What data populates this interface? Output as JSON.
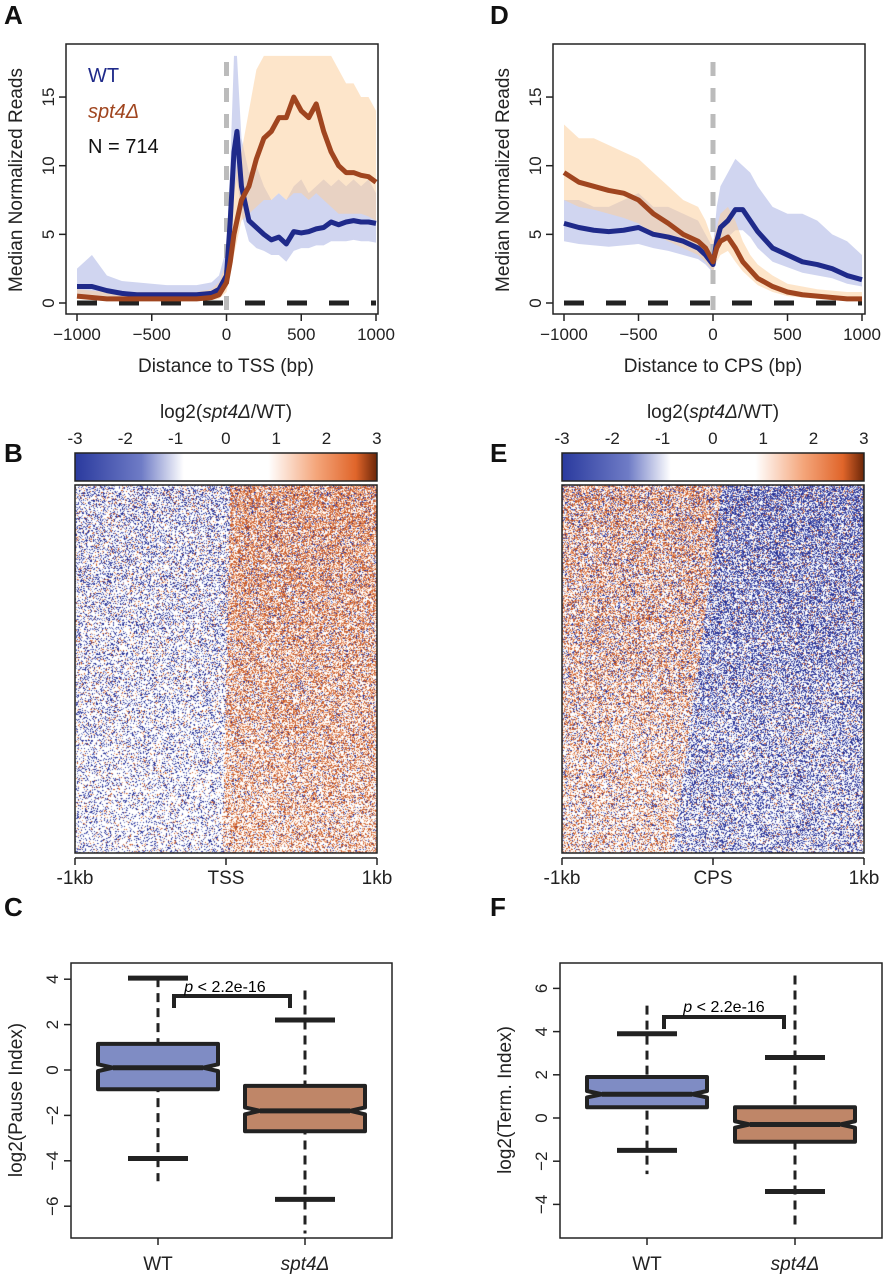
{
  "colors": {
    "wt_line": "#1f2a8a",
    "wt_band": "#aab3e3",
    "spt4_line": "#a0451f",
    "spt4_band": "#fbcf9f",
    "wt_box": "#7f8cc4",
    "spt4_box": "#bf8668",
    "heat_low": "#2a3a9e",
    "heat_mid": "#ffffff",
    "heat_high": "#e0652a",
    "heat_max": "#6b2608"
  },
  "chart_data": [
    {
      "panel": "A",
      "type": "line",
      "xlabel": "Distance to TSS (bp)",
      "ylabel": "Median Normalized Reads",
      "xlim": [
        -1000,
        1000
      ],
      "ylim": [
        0,
        18
      ],
      "xticks": [
        "−1000",
        "−500",
        "0",
        "500",
        "1000"
      ],
      "yticks": [
        "0",
        "5",
        "10",
        "15"
      ],
      "annotation": "N = 714",
      "x": [
        -1000,
        -900,
        -800,
        -700,
        -600,
        -500,
        -400,
        -300,
        -200,
        -100,
        -50,
        0,
        25,
        50,
        70,
        100,
        150,
        200,
        250,
        300,
        350,
        400,
        450,
        500,
        550,
        600,
        650,
        700,
        750,
        800,
        850,
        900,
        950,
        1000
      ],
      "series": [
        {
          "name": "WT",
          "values": [
            1.2,
            1.2,
            0.9,
            0.7,
            0.6,
            0.6,
            0.6,
            0.6,
            0.6,
            0.7,
            1.0,
            2.0,
            6,
            11,
            12.5,
            8.5,
            6,
            5.5,
            5,
            4.6,
            4.8,
            4.3,
            5.2,
            5.1,
            5.2,
            5.4,
            5.5,
            5.9,
            5.7,
            5.9,
            6,
            5.9,
            5.9,
            5.8
          ],
          "band_lower": [
            0.6,
            0.6,
            0.5,
            0.4,
            0.4,
            0.4,
            0.4,
            0.4,
            0.4,
            0.4,
            0.6,
            1.2,
            4,
            8,
            9,
            6.5,
            4.5,
            4,
            3.8,
            3.5,
            3.5,
            3,
            3.8,
            4,
            4,
            4.2,
            4.2,
            4.5,
            4.5,
            4.5,
            4.6,
            4.5,
            4.5,
            4.4
          ],
          "band_upper": [
            2.5,
            3.5,
            2,
            1.6,
            1.5,
            1.4,
            1.3,
            1.3,
            1.3,
            1.5,
            2,
            4,
            10,
            18,
            18,
            12,
            9.5,
            10,
            8.5,
            7.5,
            8,
            7.5,
            8.5,
            9,
            8,
            8.5,
            9,
            8.5,
            9,
            8.5,
            9,
            8.5,
            9,
            8
          ]
        },
        {
          "name": "spt4Δ",
          "values": [
            0.5,
            0.4,
            0.3,
            0.3,
            0.3,
            0.3,
            0.3,
            0.3,
            0.3,
            0.4,
            0.6,
            1.5,
            3,
            5,
            6,
            7.5,
            8.5,
            10.5,
            12,
            12.5,
            13.5,
            13.5,
            15,
            14,
            13.5,
            14.5,
            12.5,
            11,
            10,
            9.5,
            9.5,
            9.3,
            9.2,
            8.8
          ],
          "band_lower": [
            0.3,
            0.2,
            0.2,
            0.2,
            0.2,
            0.2,
            0.2,
            0.2,
            0.2,
            0.2,
            0.3,
            0.8,
            2,
            3.5,
            4.5,
            6,
            6.5,
            7,
            7.5,
            7.5,
            8,
            7.5,
            8,
            8,
            7.5,
            8,
            7.5,
            7,
            6.5,
            6.5,
            6.5,
            6.5,
            6.3,
            6
          ],
          "band_upper": [
            1,
            0.9,
            0.8,
            0.8,
            0.8,
            0.8,
            0.8,
            0.8,
            0.8,
            1,
            1.5,
            3,
            5,
            8,
            10,
            11,
            14,
            17,
            18,
            18,
            18,
            18,
            18,
            18,
            18,
            18,
            18,
            18,
            17,
            16,
            16,
            15,
            15,
            14
          ]
        }
      ]
    },
    {
      "panel": "D",
      "type": "line",
      "xlabel": "Distance to CPS (bp)",
      "ylabel": "Median Normalized Reads",
      "xlim": [
        -1000,
        1000
      ],
      "ylim": [
        0,
        18
      ],
      "xticks": [
        "−1000",
        "−500",
        "0",
        "500",
        "1000"
      ],
      "yticks": [
        "0",
        "5",
        "10",
        "15"
      ],
      "x": [
        -1000,
        -900,
        -800,
        -700,
        -600,
        -500,
        -400,
        -300,
        -200,
        -100,
        -50,
        0,
        25,
        50,
        100,
        150,
        200,
        250,
        300,
        400,
        500,
        600,
        700,
        800,
        900,
        1000
      ],
      "series": [
        {
          "name": "WT",
          "values": [
            5.8,
            5.5,
            5.3,
            5.2,
            5.3,
            5.5,
            5,
            4.8,
            4.5,
            4,
            3.5,
            2.8,
            4.5,
            5.5,
            6,
            6.8,
            6.8,
            6,
            5.2,
            4,
            3.5,
            3,
            2.8,
            2.5,
            2,
            1.7
          ],
          "band_lower": [
            4.5,
            4.3,
            4.2,
            4.1,
            4.2,
            4.3,
            4,
            3.8,
            3.5,
            3.2,
            2.8,
            2.2,
            3.5,
            4.3,
            4.8,
            5.3,
            5.3,
            4.8,
            4,
            3,
            2.6,
            2.2,
            2,
            1.8,
            1.4,
            1.2
          ],
          "band_upper": [
            7.5,
            7.5,
            7,
            7,
            7.5,
            8,
            7,
            7,
            6.5,
            6,
            5,
            4,
            7,
            8.5,
            9.5,
            10.5,
            10,
            9.5,
            8.5,
            7,
            6.5,
            6.5,
            6,
            5,
            4.5,
            3.5
          ]
        },
        {
          "name": "spt4Δ",
          "values": [
            9.5,
            8.8,
            8.5,
            8.2,
            8,
            7.5,
            6.5,
            5.8,
            5,
            4.5,
            4,
            3,
            4,
            4.5,
            4.8,
            4,
            3,
            2.4,
            1.8,
            1.2,
            0.8,
            0.6,
            0.5,
            0.4,
            0.3,
            0.3
          ],
          "band_lower": [
            7.5,
            7,
            6.8,
            6.5,
            6.2,
            5.8,
            5,
            4.5,
            4,
            3.5,
            3,
            2.3,
            3,
            3.5,
            3.8,
            3,
            2.3,
            1.8,
            1.3,
            0.8,
            0.5,
            0.4,
            0.3,
            0.2,
            0.2,
            0.2
          ],
          "band_upper": [
            13,
            12,
            12,
            11.5,
            11,
            10.5,
            9.5,
            8.5,
            7.5,
            7,
            6,
            4.5,
            5.5,
            6.5,
            7,
            6,
            4.5,
            3.5,
            2.8,
            2,
            1.4,
            1.2,
            1,
            0.9,
            0.8,
            0.8
          ]
        }
      ]
    },
    {
      "panel": "B",
      "type": "heatmap",
      "colorbar_title": {
        "prefix": "log2(",
        "italic": "spt4Δ",
        "suffix": "/WT)"
      },
      "colorbar_ticks": [
        "-3",
        "-2",
        "-1",
        "0",
        "1",
        "2",
        "3"
      ],
      "colorbar_range": [
        -3,
        3
      ],
      "xticks": [
        "-1kb",
        "TSS",
        "1kb"
      ],
      "pattern": "blue-before-orange-after"
    },
    {
      "panel": "E",
      "type": "heatmap",
      "colorbar_title": {
        "prefix": "log2(",
        "italic": "spt4Δ",
        "suffix": "/WT)"
      },
      "colorbar_ticks": [
        "-3",
        "-2",
        "-1",
        "0",
        "1",
        "2",
        "3"
      ],
      "colorbar_range": [
        -3,
        3
      ],
      "xticks": [
        "-1kb",
        "CPS",
        "1kb"
      ],
      "pattern": "orange-before-blue-after"
    },
    {
      "panel": "C",
      "type": "box",
      "ylabel": "log2(Pause Index)",
      "ylim": [
        -7.4,
        4.8
      ],
      "yticks": [
        "−6",
        "−4",
        "−2",
        "0",
        "2",
        "4"
      ],
      "ytick_values": [
        -6,
        -4,
        -2,
        0,
        2,
        4
      ],
      "categories": [
        "WT",
        "spt4Δ"
      ],
      "boxes": [
        {
          "q1": -0.85,
          "median": 0.1,
          "q3": 1.15,
          "whisker_low": -3.9,
          "whisker_high": 4.05,
          "min": -4.9,
          "max": 4.05
        },
        {
          "q1": -2.7,
          "median": -1.8,
          "q3": -0.7,
          "whisker_low": -5.7,
          "whisker_high": 2.2,
          "min": -7.2,
          "max": 3.5
        }
      ],
      "annotation": {
        "p_italic": "p",
        "text": " < 2.2e-16"
      }
    },
    {
      "panel": "F",
      "type": "box",
      "ylabel": "log2(Term. Index)",
      "ylim": [
        -5.5,
        7
      ],
      "yticks": [
        "−4",
        "−2",
        "0",
        "2",
        "4",
        "6"
      ],
      "ytick_values": [
        -4,
        -2,
        0,
        2,
        4,
        6
      ],
      "categories": [
        "WT",
        "spt4Δ"
      ],
      "boxes": [
        {
          "q1": 0.5,
          "median": 1.1,
          "q3": 1.9,
          "whisker_low": -1.5,
          "whisker_high": 3.9,
          "min": -2.6,
          "max": 5.2
        },
        {
          "q1": -1.1,
          "median": -0.3,
          "q3": 0.5,
          "whisker_low": -3.4,
          "whisker_high": 2.8,
          "min": -5.2,
          "max": 6.6
        }
      ],
      "annotation": {
        "p_italic": "p",
        "text": " < 2.2e-16"
      }
    }
  ],
  "panel_letters": [
    "A",
    "B",
    "C",
    "D",
    "E",
    "F"
  ]
}
